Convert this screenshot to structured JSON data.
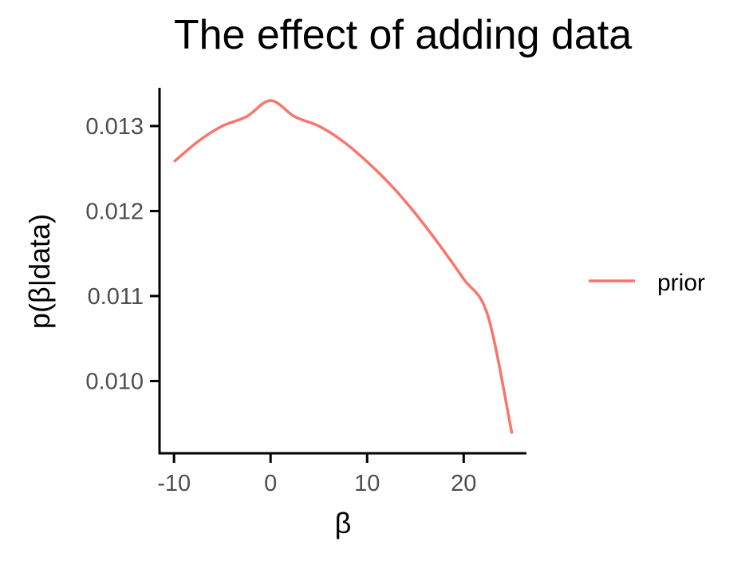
{
  "chart_data": {
    "type": "line",
    "title": "The effect of adding data",
    "xlabel": "β",
    "ylabel": "p(β|data)",
    "xlim": [
      -11.5,
      26.5
    ],
    "ylim": [
      0.00915,
      0.01345
    ],
    "x_ticks": [
      -10,
      0,
      10,
      20
    ],
    "x_tick_labels": [
      "-10",
      "0",
      "10",
      "20"
    ],
    "y_ticks": [
      0.01,
      0.011,
      0.012,
      0.013
    ],
    "y_tick_labels": [
      "0.010",
      "0.011",
      "0.012",
      "0.013"
    ],
    "grid": false,
    "legend": {
      "position": "right"
    },
    "series": [
      {
        "name": "prior",
        "color": "#F8766D",
        "x": [
          -10,
          -7.5,
          -5,
          -2.5,
          0,
          2.5,
          5,
          7.5,
          10,
          12.5,
          15,
          17.5,
          20,
          22.5,
          25
        ],
        "y": [
          0.01258,
          0.01282,
          0.013,
          0.01311,
          0.0133,
          0.01311,
          0.013,
          0.01282,
          0.01258,
          0.0123,
          0.01197,
          0.0116,
          0.0112,
          0.01077,
          0.00938
        ]
      }
    ]
  }
}
